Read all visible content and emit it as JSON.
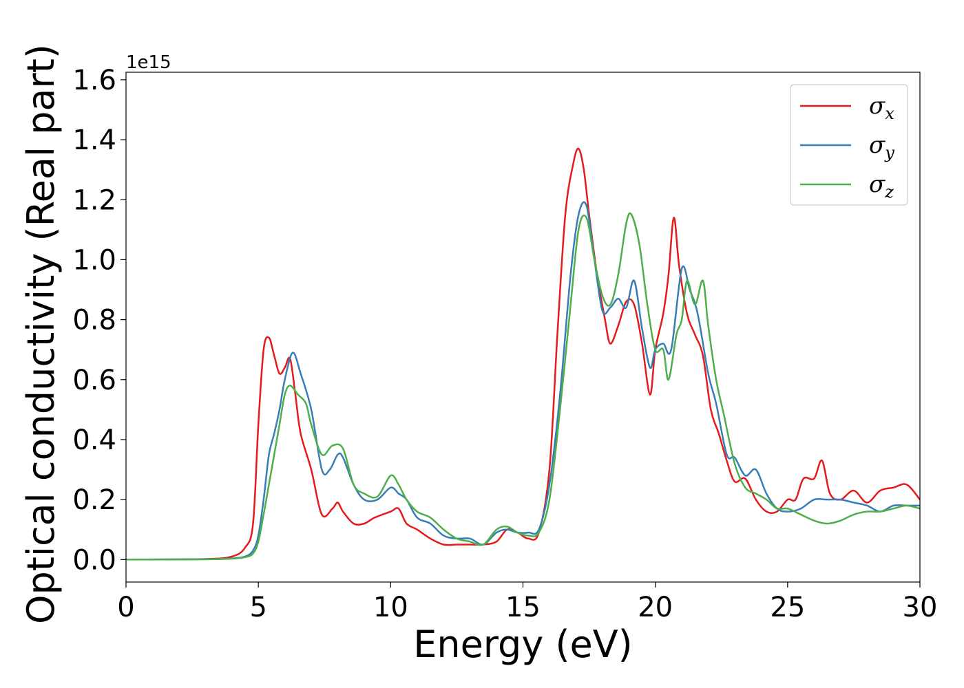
{
  "chart_data": {
    "type": "line",
    "title": "",
    "xlabel": "Energy (eV)",
    "ylabel": "Optical conductivity (Real part)",
    "xlim": [
      0,
      30
    ],
    "ylim": [
      -0.075,
      1.625
    ],
    "y_offset_label": "1e15",
    "x_ticks": [
      "0",
      "5",
      "10",
      "15",
      "20",
      "25",
      "30"
    ],
    "y_ticks": [
      "0.0",
      "0.2",
      "0.4",
      "0.6",
      "0.8",
      "1.0",
      "1.2",
      "1.4",
      "1.6"
    ],
    "grid": false,
    "legend_position": "top-right",
    "series": [
      {
        "name": "σx",
        "symbol": "σ",
        "subscript": "x",
        "color": "#e41a1c",
        "x": [
          0,
          3,
          4,
          4.5,
          4.8,
          5.0,
          5.2,
          5.4,
          5.6,
          5.8,
          6.0,
          6.2,
          6.4,
          6.6,
          7.0,
          7.4,
          7.8,
          8.0,
          8.2,
          8.6,
          9.0,
          9.4,
          10.0,
          10.3,
          10.6,
          11.0,
          11.5,
          12.0,
          12.5,
          13.0,
          13.5,
          14.0,
          14.4,
          14.8,
          15.2,
          15.6,
          16.0,
          16.3,
          16.6,
          16.9,
          17.1,
          17.3,
          17.5,
          17.8,
          18.1,
          18.3,
          18.6,
          18.9,
          19.2,
          19.5,
          19.8,
          20.0,
          20.3,
          20.5,
          20.7,
          20.9,
          21.2,
          21.5,
          21.8,
          22.1,
          22.4,
          22.7,
          23.0,
          23.4,
          23.8,
          24.2,
          24.6,
          25.0,
          25.3,
          25.6,
          26.0,
          26.3,
          26.6,
          27.0,
          27.5,
          28.0,
          28.5,
          29.0,
          29.5,
          30.0
        ],
        "y": [
          0.0,
          0.002,
          0.01,
          0.04,
          0.12,
          0.45,
          0.7,
          0.74,
          0.68,
          0.62,
          0.64,
          0.67,
          0.55,
          0.42,
          0.3,
          0.15,
          0.17,
          0.19,
          0.16,
          0.12,
          0.12,
          0.14,
          0.16,
          0.17,
          0.12,
          0.1,
          0.07,
          0.05,
          0.05,
          0.05,
          0.05,
          0.06,
          0.1,
          0.09,
          0.07,
          0.09,
          0.3,
          0.75,
          1.15,
          1.32,
          1.37,
          1.3,
          1.15,
          0.95,
          0.8,
          0.72,
          0.78,
          0.86,
          0.85,
          0.72,
          0.55,
          0.7,
          0.82,
          0.95,
          1.14,
          0.98,
          0.82,
          0.75,
          0.68,
          0.5,
          0.42,
          0.33,
          0.26,
          0.27,
          0.2,
          0.16,
          0.16,
          0.2,
          0.2,
          0.27,
          0.27,
          0.33,
          0.22,
          0.2,
          0.23,
          0.19,
          0.23,
          0.24,
          0.25,
          0.2
        ]
      },
      {
        "name": "σy",
        "symbol": "σ",
        "subscript": "y",
        "color": "#377eb8",
        "x": [
          0,
          3,
          4,
          4.5,
          4.8,
          5.0,
          5.2,
          5.4,
          5.6,
          5.8,
          6.0,
          6.3,
          6.6,
          7.0,
          7.4,
          7.7,
          8.0,
          8.2,
          8.6,
          9.0,
          9.5,
          10.0,
          10.3,
          10.6,
          11.0,
          11.5,
          12.0,
          12.5,
          13.0,
          13.5,
          14.0,
          14.4,
          14.8,
          15.2,
          15.6,
          16.0,
          16.4,
          16.8,
          17.1,
          17.4,
          17.7,
          18.0,
          18.3,
          18.6,
          18.9,
          19.2,
          19.5,
          19.8,
          20.0,
          20.3,
          20.6,
          21.0,
          21.3,
          21.6,
          22.0,
          22.3,
          22.7,
          23.0,
          23.4,
          23.8,
          24.2,
          24.6,
          25.0,
          25.5,
          26.0,
          26.5,
          27.0,
          27.5,
          28.0,
          28.5,
          29.0,
          29.5,
          30.0
        ],
        "y": [
          0.0,
          0.001,
          0.004,
          0.01,
          0.03,
          0.08,
          0.2,
          0.35,
          0.42,
          0.5,
          0.6,
          0.69,
          0.62,
          0.5,
          0.3,
          0.3,
          0.35,
          0.34,
          0.25,
          0.2,
          0.2,
          0.24,
          0.22,
          0.2,
          0.14,
          0.12,
          0.08,
          0.07,
          0.07,
          0.05,
          0.09,
          0.1,
          0.09,
          0.09,
          0.1,
          0.25,
          0.55,
          0.95,
          1.15,
          1.18,
          1.0,
          0.83,
          0.84,
          0.87,
          0.84,
          0.93,
          0.77,
          0.64,
          0.7,
          0.72,
          0.7,
          0.97,
          0.9,
          0.82,
          0.62,
          0.52,
          0.35,
          0.34,
          0.28,
          0.3,
          0.22,
          0.17,
          0.16,
          0.17,
          0.2,
          0.2,
          0.2,
          0.19,
          0.18,
          0.16,
          0.18,
          0.18,
          0.18
        ]
      },
      {
        "name": "σz",
        "symbol": "σ",
        "subscript": "z",
        "color": "#4daf4a",
        "x": [
          0,
          3,
          4,
          4.5,
          4.8,
          5.0,
          5.2,
          5.4,
          5.6,
          5.8,
          6.0,
          6.2,
          6.5,
          6.8,
          7.0,
          7.4,
          7.8,
          8.2,
          8.6,
          9.0,
          9.5,
          10.0,
          10.3,
          10.6,
          11.0,
          11.5,
          12.0,
          12.5,
          13.0,
          13.5,
          14.0,
          14.4,
          14.8,
          15.2,
          15.6,
          16.0,
          16.4,
          16.8,
          17.1,
          17.4,
          17.7,
          18.0,
          18.3,
          18.6,
          18.9,
          19.1,
          19.4,
          19.7,
          20.0,
          20.3,
          20.5,
          20.8,
          21.0,
          21.2,
          21.5,
          21.8,
          22.0,
          22.3,
          22.6,
          23.0,
          23.4,
          23.8,
          24.2,
          24.6,
          25.0,
          25.5,
          26.0,
          26.5,
          27.0,
          27.5,
          28.0,
          28.5,
          29.0,
          29.5,
          30.0
        ],
        "y": [
          0.0,
          0.001,
          0.003,
          0.008,
          0.02,
          0.06,
          0.15,
          0.25,
          0.35,
          0.45,
          0.55,
          0.58,
          0.55,
          0.52,
          0.45,
          0.35,
          0.38,
          0.37,
          0.25,
          0.22,
          0.21,
          0.28,
          0.25,
          0.2,
          0.16,
          0.14,
          0.1,
          0.07,
          0.06,
          0.05,
          0.1,
          0.11,
          0.09,
          0.08,
          0.09,
          0.2,
          0.5,
          0.85,
          1.1,
          1.14,
          1.0,
          0.88,
          0.85,
          0.95,
          1.12,
          1.15,
          1.05,
          0.85,
          0.7,
          0.7,
          0.6,
          0.75,
          0.8,
          0.93,
          0.85,
          0.93,
          0.78,
          0.6,
          0.48,
          0.32,
          0.24,
          0.22,
          0.2,
          0.17,
          0.17,
          0.15,
          0.13,
          0.12,
          0.13,
          0.15,
          0.16,
          0.16,
          0.17,
          0.18,
          0.17
        ]
      }
    ]
  }
}
